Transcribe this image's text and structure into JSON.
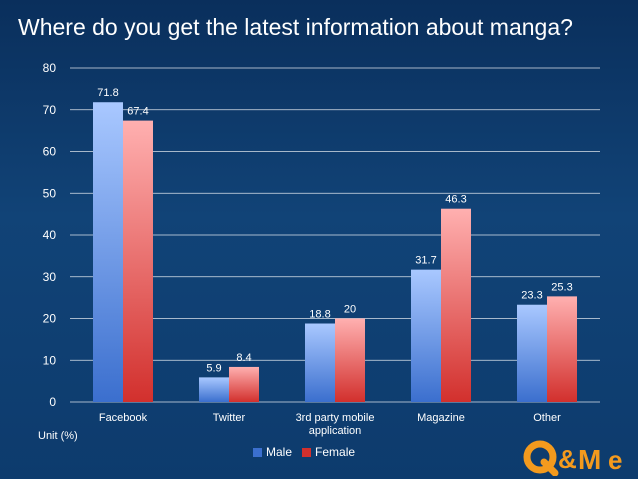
{
  "title": "Where do you get the latest information about manga?",
  "unit_label": "Unit (%)",
  "logo": {
    "text": "Q&Me"
  },
  "colors": {
    "male_top": "#a9c8ff",
    "male_bottom": "#3b6fce",
    "female_top": "#ffb0b0",
    "female_bottom": "#d2302d",
    "axis_text": "#ffffff",
    "label_text": "#ffffff",
    "grid": "#ffffff"
  },
  "chart_data": {
    "type": "bar",
    "title": "Where do you get the latest information about manga?",
    "categories": [
      "Facebook",
      "Twitter",
      "3rd party mobile application",
      "Magazine",
      "Other"
    ],
    "category_lines": [
      [
        "Facebook"
      ],
      [
        "Twitter"
      ],
      [
        "3rd party mobile",
        "application"
      ],
      [
        "Magazine"
      ],
      [
        "Other"
      ]
    ],
    "series": [
      {
        "name": "Male",
        "values": [
          71.8,
          5.9,
          18.8,
          31.7,
          23.3
        ],
        "value_labels": [
          "71.8",
          "5.9",
          "18.8",
          "31.7",
          "23.3"
        ]
      },
      {
        "name": "Female",
        "values": [
          67.4,
          8.4,
          20,
          46.3,
          25.3
        ],
        "value_labels": [
          "67.4",
          "8.4",
          "20",
          "46.3",
          "25.3"
        ]
      }
    ],
    "ylim": [
      0,
      80
    ],
    "yticks": [
      0,
      10,
      20,
      30,
      40,
      50,
      60,
      70,
      80
    ],
    "ytick_labels": [
      "0",
      "10",
      "20",
      "30",
      "40",
      "50",
      "60",
      "70",
      "80"
    ],
    "ylabel": "Unit (%)",
    "xlabel": "",
    "grid": true,
    "legend": "bottom-center"
  }
}
